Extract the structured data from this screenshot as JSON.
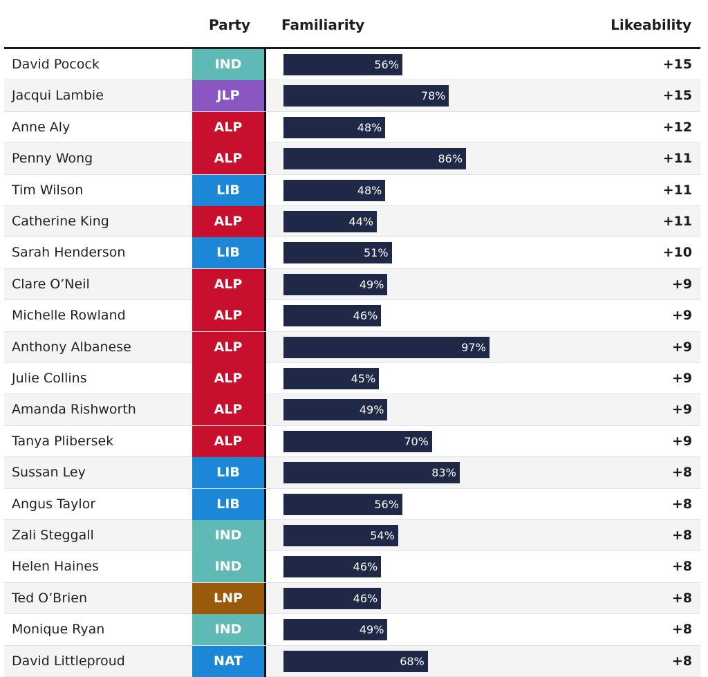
{
  "chart_data": {
    "type": "table",
    "columns": [
      "",
      "Party",
      "Familiarity",
      "Likeability"
    ],
    "value_unit": "%",
    "party_colors": {
      "IND": "#5fbab5",
      "JLP": "#8a56c2",
      "ALP": "#c8102e",
      "LIB": "#1c87d6",
      "LNP": "#9a5a0c",
      "NAT": "#1c87d6"
    },
    "bar_color": "#1f2847",
    "rows": [
      {
        "name": "David Pocock",
        "party": "IND",
        "familiarity": 56,
        "likeability": "+15"
      },
      {
        "name": "Jacqui Lambie",
        "party": "JLP",
        "familiarity": 78,
        "likeability": "+15"
      },
      {
        "name": "Anne Aly",
        "party": "ALP",
        "familiarity": 48,
        "likeability": "+12"
      },
      {
        "name": "Penny Wong",
        "party": "ALP",
        "familiarity": 86,
        "likeability": "+11"
      },
      {
        "name": "Tim Wilson",
        "party": "LIB",
        "familiarity": 48,
        "likeability": "+11"
      },
      {
        "name": "Catherine King",
        "party": "ALP",
        "familiarity": 44,
        "likeability": "+11"
      },
      {
        "name": "Sarah Henderson",
        "party": "LIB",
        "familiarity": 51,
        "likeability": "+10"
      },
      {
        "name": "Clare O’Neil",
        "party": "ALP",
        "familiarity": 49,
        "likeability": "+9"
      },
      {
        "name": "Michelle Rowland",
        "party": "ALP",
        "familiarity": 46,
        "likeability": "+9"
      },
      {
        "name": "Anthony Albanese",
        "party": "ALP",
        "familiarity": 97,
        "likeability": "+9"
      },
      {
        "name": "Julie Collins",
        "party": "ALP",
        "familiarity": 45,
        "likeability": "+9"
      },
      {
        "name": "Amanda Rishworth",
        "party": "ALP",
        "familiarity": 49,
        "likeability": "+9"
      },
      {
        "name": "Tanya Plibersek",
        "party": "ALP",
        "familiarity": 70,
        "likeability": "+9"
      },
      {
        "name": "Sussan Ley",
        "party": "LIB",
        "familiarity": 83,
        "likeability": "+8"
      },
      {
        "name": "Angus Taylor",
        "party": "LIB",
        "familiarity": 56,
        "likeability": "+8"
      },
      {
        "name": "Zali Steggall",
        "party": "IND",
        "familiarity": 54,
        "likeability": "+8"
      },
      {
        "name": "Helen Haines",
        "party": "IND",
        "familiarity": 46,
        "likeability": "+8"
      },
      {
        "name": "Ted O’Brien",
        "party": "LNP",
        "familiarity": 46,
        "likeability": "+8"
      },
      {
        "name": "Monique Ryan",
        "party": "IND",
        "familiarity": 49,
        "likeability": "+8"
      },
      {
        "name": "David Littleproud",
        "party": "NAT",
        "familiarity": 68,
        "likeability": "+8"
      }
    ]
  }
}
